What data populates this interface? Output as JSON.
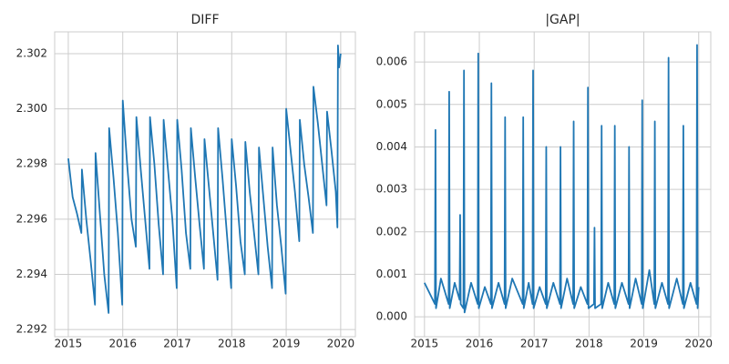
{
  "chart_data": [
    {
      "type": "line",
      "title": "DIFF",
      "color": "#1f77b4",
      "grid": true,
      "xlim": [
        2014.75,
        2020.27
      ],
      "ylim": [
        2.29174,
        2.30279
      ],
      "xticks": [
        2015,
        2016,
        2017,
        2018,
        2019,
        2020
      ],
      "yticks": [
        2.292,
        2.294,
        2.296,
        2.298,
        {
          "value": 2.3,
          "label": "2.300"
        },
        2.302
      ],
      "x": [
        2015.0,
        2015.08,
        2015.16,
        2015.24,
        2015.25,
        2015.33,
        2015.41,
        2015.49,
        2015.5,
        2015.58,
        2015.66,
        2015.74,
        2015.75,
        2015.83,
        2015.91,
        2015.99,
        2016.0,
        2016.08,
        2016.16,
        2016.24,
        2016.25,
        2016.33,
        2016.41,
        2016.49,
        2016.5,
        2016.58,
        2016.66,
        2016.74,
        2016.75,
        2016.83,
        2016.91,
        2016.99,
        2017.0,
        2017.08,
        2017.16,
        2017.24,
        2017.25,
        2017.33,
        2017.41,
        2017.49,
        2017.5,
        2017.58,
        2017.66,
        2017.74,
        2017.75,
        2017.83,
        2017.91,
        2017.99,
        2018.0,
        2018.08,
        2018.16,
        2018.24,
        2018.25,
        2018.33,
        2018.41,
        2018.49,
        2018.5,
        2018.58,
        2018.66,
        2018.74,
        2018.75,
        2018.83,
        2018.91,
        2018.99,
        2019.0,
        2019.08,
        2019.16,
        2019.24,
        2019.25,
        2019.33,
        2019.41,
        2019.49,
        2019.5,
        2019.58,
        2019.66,
        2019.74,
        2019.75,
        2019.83,
        2019.91,
        2019.94,
        2019.95,
        2019.97,
        2020.0
      ],
      "values": [
        2.2982,
        2.2968,
        2.2962,
        2.2955,
        2.2978,
        2.296,
        2.2945,
        2.2929,
        2.2984,
        2.2962,
        2.294,
        2.2926,
        2.2993,
        2.2975,
        2.2955,
        2.2929,
        2.3003,
        2.298,
        2.296,
        2.295,
        2.2997,
        2.2978,
        2.296,
        2.2942,
        2.2997,
        2.298,
        2.2958,
        2.294,
        2.2996,
        2.2978,
        2.296,
        2.2935,
        2.2996,
        2.2978,
        2.2955,
        2.2942,
        2.2993,
        2.2975,
        2.2958,
        2.2942,
        2.2989,
        2.2972,
        2.2955,
        2.2938,
        2.2993,
        2.2975,
        2.2955,
        2.2935,
        2.2989,
        2.2972,
        2.2952,
        2.294,
        2.2988,
        2.297,
        2.2955,
        2.294,
        2.2986,
        2.2968,
        2.295,
        2.2935,
        2.2986,
        2.2965,
        2.295,
        2.2933,
        2.3,
        2.2985,
        2.297,
        2.2952,
        2.2996,
        2.298,
        2.2968,
        2.2955,
        2.3008,
        2.2995,
        2.298,
        2.2965,
        2.2999,
        2.2985,
        2.297,
        2.2957,
        2.3023,
        2.3015,
        2.302
      ]
    },
    {
      "type": "line",
      "title": "|GAP|",
      "color": "#1f77b4",
      "grid": true,
      "xlim": [
        2014.82,
        2020.22
      ],
      "ylim": [
        -0.00047,
        0.00671
      ],
      "xticks": [
        2015,
        2016,
        2017,
        2018,
        2019,
        2020
      ],
      "yticks": [
        {
          "value": 0,
          "label": "0.000"
        },
        0.001,
        0.002,
        0.003,
        0.004,
        0.005,
        0.006
      ],
      "x": [
        2015.0,
        2015.19,
        2015.2,
        2015.21,
        2015.3,
        2015.44,
        2015.45,
        2015.46,
        2015.55,
        2015.64,
        2015.65,
        2015.66,
        2015.71,
        2015.72,
        2015.73,
        2015.85,
        2015.97,
        2015.98,
        2015.99,
        2016.1,
        2016.21,
        2016.22,
        2016.23,
        2016.35,
        2016.46,
        2016.47,
        2016.48,
        2016.6,
        2016.79,
        2016.8,
        2016.81,
        2016.9,
        2016.97,
        2016.98,
        2016.99,
        2017.1,
        2017.21,
        2017.22,
        2017.23,
        2017.35,
        2017.47,
        2017.48,
        2017.49,
        2017.6,
        2017.71,
        2017.72,
        2017.73,
        2017.85,
        2017.97,
        2017.98,
        2017.99,
        2018.09,
        2018.1,
        2018.11,
        2018.22,
        2018.23,
        2018.24,
        2018.35,
        2018.46,
        2018.47,
        2018.48,
        2018.6,
        2018.72,
        2018.73,
        2018.74,
        2018.85,
        2018.96,
        2018.97,
        2018.98,
        2019.1,
        2019.19,
        2019.2,
        2019.21,
        2019.33,
        2019.44,
        2019.45,
        2019.46,
        2019.6,
        2019.71,
        2019.72,
        2019.73,
        2019.85,
        2019.96,
        2019.97,
        2019.98,
        2020.0
      ],
      "values": [
        0.0008,
        0.0003,
        0.0044,
        0.0002,
        0.0009,
        0.0003,
        0.0053,
        0.0002,
        0.0008,
        0.0004,
        0.0024,
        0.0003,
        0.0002,
        0.0058,
        0.0001,
        0.0008,
        0.0003,
        0.0062,
        0.0002,
        0.0007,
        0.0003,
        0.0055,
        0.0002,
        0.0008,
        0.0003,
        0.0047,
        0.0002,
        0.0009,
        0.0003,
        0.0047,
        0.0002,
        0.0008,
        0.0003,
        0.0058,
        0.0002,
        0.0007,
        0.0003,
        0.004,
        0.0002,
        0.0008,
        0.0003,
        0.004,
        0.0002,
        0.0009,
        0.0003,
        0.0046,
        0.0002,
        0.0007,
        0.0003,
        0.0054,
        0.0002,
        0.0003,
        0.0021,
        0.0002,
        0.0003,
        0.0045,
        0.0002,
        0.0008,
        0.0003,
        0.0045,
        0.0002,
        0.0008,
        0.0003,
        0.004,
        0.0002,
        0.0009,
        0.0003,
        0.0051,
        0.0002,
        0.0011,
        0.0003,
        0.0046,
        0.0002,
        0.0008,
        0.0003,
        0.0061,
        0.0002,
        0.0009,
        0.0003,
        0.0045,
        0.0002,
        0.0008,
        0.0003,
        0.0064,
        0.0002,
        0.0007
      ]
    }
  ]
}
